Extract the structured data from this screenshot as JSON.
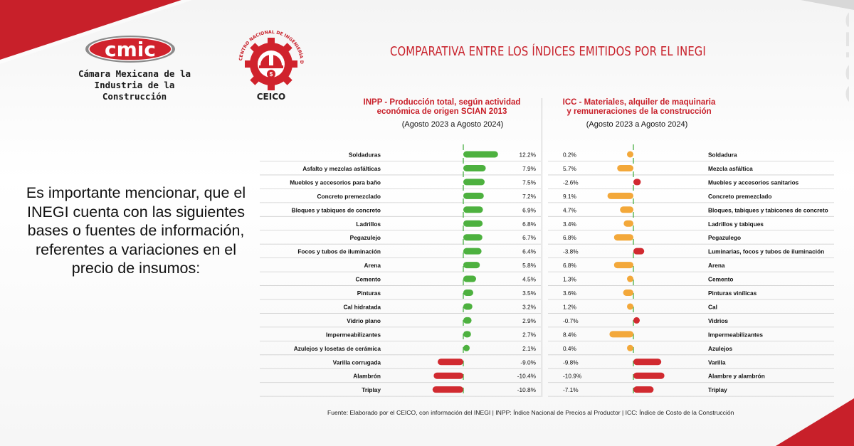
{
  "header": {
    "cmic_logo_text": "cmic",
    "cmic_name_line1": "Cámara Mexicana de la",
    "cmic_name_line2": "Industria de la Construcción",
    "ceico_logo_ring_text": "CENTRO NACIONAL DE INGENIERÍA DE COSTOS",
    "ceico_logo_text": "CEICO",
    "title": "COMPARATIVA ENTRE LOS ÍNDICES EMITIDOS POR EL INEGI",
    "side_brand": "CEICO"
  },
  "body_text": "Es importante mencionar, que el INEGI cuenta con las siguientes bases o fuentes de información, referentes a variaciones en el precio de insumos:",
  "source_note": "Fuente: Elaborado por el CEICO, con información del INEGI | INPP: Índice Nacional de Precios al Productor | ICC: Índice de Costo de la Construcción",
  "colors": {
    "accent_red": "#c8202a",
    "inpp_positive": "#4db13f",
    "icc_positive": "#f3a83a",
    "negative": "#d12a30",
    "zero_line": "#3aa935"
  },
  "chart_data": [
    {
      "type": "bar",
      "orientation": "horizontal",
      "title_line1": "INPP - Producción total, según actividad",
      "title_line2": "económica de origen SCIAN 2013",
      "subtitle": "(Agosto 2023 a Agosto 2024)",
      "categories": [
        "Soldaduras",
        "Asfalto y mezclas asfálticas",
        "Muebles y accesorios para baño",
        "Concreto premezclado",
        "Bloques y tabiques de concreto",
        "Ladrillos",
        "Pegazulejo",
        "Focos y tubos de iluminación",
        "Arena",
        "Cemento",
        "Pinturas",
        "Cal hidratada",
        "Vidrio plano",
        "Impermeabilizantes",
        "Azulejos y losetas de cerámica",
        "Varilla corrugada",
        "Alambrón",
        "Triplay"
      ],
      "values": [
        12.2,
        7.9,
        7.5,
        7.2,
        6.9,
        6.8,
        6.7,
        6.4,
        5.8,
        4.5,
        3.5,
        3.2,
        2.9,
        2.7,
        2.1,
        -9.0,
        -10.4,
        -10.8
      ],
      "value_labels": [
        "12.2%",
        "7.9%",
        "7.5%",
        "7.2%",
        "6.9%",
        "6.8%",
        "6.7%",
        "6.4%",
        "5.8%",
        "4.5%",
        "3.5%",
        "3.2%",
        "2.9%",
        "2.7%",
        "2.1%",
        "-9.0%",
        "-10.4%",
        "-10.8%"
      ],
      "unit": "%"
    },
    {
      "type": "bar",
      "orientation": "horizontal",
      "title_line1": "ICC - Materiales, alquiler de maquinaria",
      "title_line2": "y remuneraciones de la construcción",
      "subtitle": "(Agosto 2023 a Agosto 2024)",
      "categories": [
        "Soldadura",
        "Mezcla asfáltica",
        "Muebles y accesorios sanitarios",
        "Concreto premezclado",
        "Bloques, tabiques y tabicones de concreto",
        "Ladrillos y tabiques",
        "Pegazulego",
        "Luminarias, focos y tubos de iluminación",
        "Arena",
        "Cemento",
        "Pinturas vinílicas",
        "Cal",
        "Vidrios",
        "Impermeabilizantes",
        "Azulejos",
        "Varilla",
        "Alambre y alambrón",
        "Triplay"
      ],
      "values": [
        0.2,
        5.7,
        -2.6,
        9.1,
        4.7,
        3.4,
        6.8,
        -3.8,
        6.8,
        1.3,
        3.6,
        1.2,
        -0.7,
        8.4,
        0.4,
        -9.8,
        -10.9,
        -7.1
      ],
      "value_labels": [
        "0.2%",
        "5.7%",
        "-2.6%",
        "9.1%",
        "4.7%",
        "3.4%",
        "6.8%",
        "-3.8%",
        "6.8%",
        "1.3%",
        "3.6%",
        "1.2%",
        "-0.7%",
        "8.4%",
        "0.4%",
        "-9.8%",
        "-10.9%",
        "-7.1%"
      ],
      "unit": "%"
    }
  ]
}
